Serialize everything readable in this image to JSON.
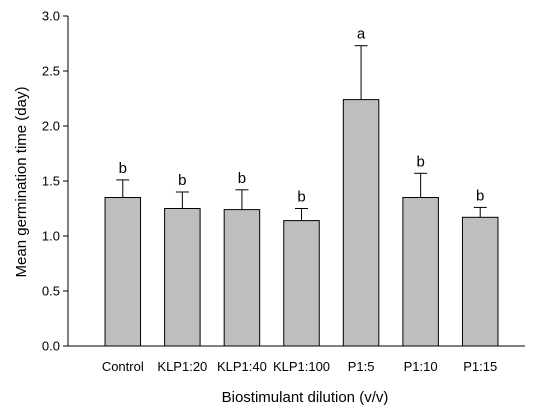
{
  "chart_data": {
    "type": "bar",
    "categories": [
      "Control",
      "KLP1:20",
      "KLP1:40",
      "KLP1:100",
      "P1:5",
      "P1:10",
      "P1:15"
    ],
    "values": [
      1.35,
      1.25,
      1.24,
      1.14,
      2.24,
      1.35,
      1.17
    ],
    "errors": [
      0.16,
      0.15,
      0.18,
      0.11,
      0.49,
      0.22,
      0.09
    ],
    "letters": [
      "b",
      "b",
      "b",
      "b",
      "a",
      "b",
      "b"
    ],
    "xlabel": "Biostimulant dilution (v/v)",
    "ylabel": "Mean germination time (day)",
    "ylim": [
      0,
      3.0
    ],
    "yticks": [
      "0.0",
      "0.5",
      "1.0",
      "1.5",
      "2.0",
      "2.5",
      "3.0"
    ],
    "bar_color": "#bebebe",
    "bar_edge_color": "#000000",
    "grid": false
  }
}
